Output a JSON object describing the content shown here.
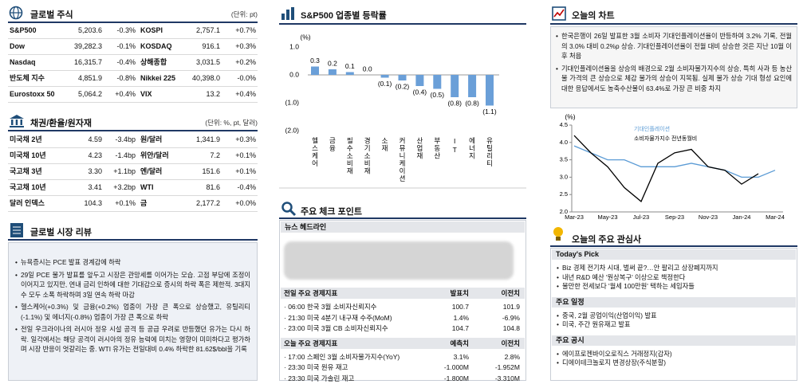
{
  "global_stocks": {
    "title": "글로벌 주식",
    "unit": "(단위: pt)",
    "rows": [
      [
        "S&P500",
        "5,203.6",
        "-0.3%",
        "KOSPI",
        "2,757.1",
        "+0.7%"
      ],
      [
        "Dow",
        "39,282.3",
        "-0.1%",
        "KOSDAQ",
        "916.1",
        "+0.3%"
      ],
      [
        "Nasdaq",
        "16,315.7",
        "-0.4%",
        "상해종합",
        "3,031.5",
        "+0.2%"
      ],
      [
        "반도체 지수",
        "4,851.9",
        "-0.8%",
        "Nikkei 225",
        "40,398.0",
        "-0.0%"
      ],
      [
        "Eurostoxx 50",
        "5,064.2",
        "+0.4%",
        "VIX",
        "13.2",
        "+0.4%"
      ]
    ]
  },
  "bonds_fx": {
    "title": "채권/환율/원자재",
    "unit": "(단위: %, pt, 달러)",
    "rows": [
      [
        "미국채 2년",
        "4.59",
        "-3.4bp",
        "원/달러",
        "1,341.9",
        "+0.3%"
      ],
      [
        "미국채 10년",
        "4.23",
        "-1.4bp",
        "위안/달러",
        "7.2",
        "+0.1%"
      ],
      [
        "국고채 3년",
        "3.30",
        "+1.1bp",
        "엔/달러",
        "151.6",
        "+0.1%"
      ],
      [
        "국고채 10년",
        "3.41",
        "+3.2bp",
        "WTI",
        "81.6",
        "-0.4%"
      ],
      [
        "달러 인덱스",
        "104.3",
        "+0.1%",
        "금",
        "2,177.2",
        "+0.0%"
      ]
    ]
  },
  "market_review": {
    "title": "글로벌 시장 리뷰",
    "bullets": [
      "뉴욕증시는 PCE 발표 경계감에 하락",
      "29일 PCE 물가 발표를 앞두고 시장은 관망세를 이어가는 모습. 고점 부담에 조정이 이어지고 있지만, 연내 금리 인하에 대한 기대감으로 증시의 하락 폭은 제한적. 3대지수 모두 소폭 하락하며 3일 연속 하락 마감",
      "헬스케어(+0.3%) 및 금융(+0.2%) 업종이 가장 큰 폭으로 상승했고, 유틸리티(-1.1%) 및 에너지(-0.8%) 업종이 가장 큰 폭으로 하락",
      "전일 우크라이나의 러시아 정유 시설 공격 등 공급 우려로 반등했던 유가는 다시 하락. 일각에서는 해당 공격이 러시아의 정유 능력에 미치는 영향이 미미하다고 평가하며 시장 반응이 엇갈리는 중. WTI 유가는 전일대비 0.4% 하락한 81.62$/bbl을 기록"
    ]
  },
  "chart_data": [
    {
      "type": "bar",
      "title": "S&P500 업종별 등락률",
      "y_label": "(%)",
      "categories": [
        "헬스케어",
        "금융",
        "필수소비재",
        "경기소비재",
        "소재",
        "커뮤니케이션",
        "산업재",
        "부동산",
        "IT",
        "에너지",
        "유틸리티"
      ],
      "values": [
        0.3,
        0.2,
        0.1,
        0,
        -0.1,
        -0.2,
        -0.4,
        -0.5,
        -0.8,
        -0.8,
        -1.1
      ],
      "value_labels": [
        "0.3",
        "0.2",
        "0.1",
        "0.0",
        "(0.1)",
        "(0.2)",
        "(0.4)",
        "(0.5)",
        "(0.8)",
        "(0.8)",
        "(1.1)"
      ],
      "color": "#6a9fd8",
      "ylim": [
        -2,
        1
      ],
      "yticks": [
        {
          "value": 1,
          "label": "1.0"
        },
        {
          "value": 0,
          "label": "0.0"
        },
        {
          "value": -1,
          "label": "(1.0)"
        },
        {
          "value": -2,
          "label": "(2.0)"
        }
      ]
    },
    {
      "type": "line",
      "y_label": "(%)",
      "categories": [
        "Mar-23",
        null,
        "May-23",
        null,
        "Jul-23",
        null,
        "Sep-23",
        null,
        "Nov-23",
        null,
        "Jan-24",
        null,
        "Mar-24"
      ],
      "series": [
        {
          "name": "기대인플레이션",
          "color": "#5b9bd5",
          "values": [
            3.9,
            3.7,
            3.5,
            3.5,
            3.3,
            3.3,
            3.3,
            3.4,
            3.3,
            3.2,
            3.0,
            3.0,
            3.2
          ]
        },
        {
          "name": "소비자물가지수 전년동월비",
          "color": "#000000",
          "values": [
            4.2,
            3.7,
            3.3,
            2.7,
            2.3,
            3.4,
            3.7,
            3.8,
            3.3,
            3.2,
            2.8,
            3.1,
            null
          ]
        }
      ],
      "ylim": [
        2,
        4.5
      ],
      "yticks": [
        {
          "value": 2,
          "label": "2.0"
        },
        2.5,
        {
          "value": 3,
          "label": "3.0"
        },
        3.5,
        {
          "value": 4,
          "label": "4.0"
        },
        4.5
      ]
    }
  ],
  "check_points": {
    "title": "주요 체크 포인트",
    "news_title": "뉴스 헤드라인",
    "blocks": [
      {
        "header": [
          "전일 주요 경제지표",
          "발표치",
          "이전치"
        ],
        "rows": [
          [
            "· 06:00 한국 3월 소비자신뢰지수",
            "100.7",
            "101.9"
          ],
          [
            "· 21:30 미국 4분기 내구재 수주(MoM)",
            "1.4%",
            "-6.9%"
          ],
          [
            "· 23:00 미국 3월 CB 소비자신뢰지수",
            "104.7",
            "104.8"
          ]
        ]
      },
      {
        "header": [
          "오늘 주요 경제지표",
          "예측치",
          "이전치"
        ],
        "rows": [
          [
            "· 17:00 스페인 3월 소비자물가지수(YoY)",
            "3.1%",
            "2.8%"
          ],
          [
            "· 23:30 미국 원유 재고",
            "-1.000M",
            "-1.952M"
          ],
          [
            "· 23:30 미국 가솔린 재고",
            "-1.800M",
            "-3.310M"
          ]
        ]
      }
    ]
  },
  "today_chart": {
    "title": "오늘의 차트",
    "bullets": [
      "한국은행이 26일 발표한 3월 소비자 기대인플레이션율이 반등하여 3.2% 기록, 전월의 3.0% 대비 0.2%p 상승. 기대인플레이션율이 전월 대비 상승한 것은 지난 10월 이후 처음",
      "기대인플레이션율을 상승의 배경으로 2월 소비자물가지수의 상승, 특히 사과 등 농산물 가격의 큰 상승으로 체감 물가의 상승이 지목됨. 실제 물가 상승 기대 형성 요인에 대한 응답에서도 농축수산물이 63.4%로 가장 큰 비중 차지"
    ]
  },
  "interests": {
    "title": "오늘의 주요 관심사",
    "sections": [
      {
        "title": "Today's Pick",
        "items": [
          "Biz 경제 전기차 시대, 벌써 끝?…안 팔리고 상장폐지까지",
          "내년 R&D 예산 '원상복구' 이상으로 책정한다",
          "물만한 전세보다 '월세 100만원' 택하는 세입자들"
        ]
      },
      {
        "title": "주요 일정",
        "items": [
          "중국, 2월 공업이익(산업이익) 발표",
          "미국, 주간 원유재고 발표"
        ]
      },
      {
        "title": "주요 공시",
        "items": [
          "에이프로젠바이오로직스 거래정지(감자)",
          "디에이테크놀로지 변경상장(주식분할)"
        ]
      }
    ]
  }
}
